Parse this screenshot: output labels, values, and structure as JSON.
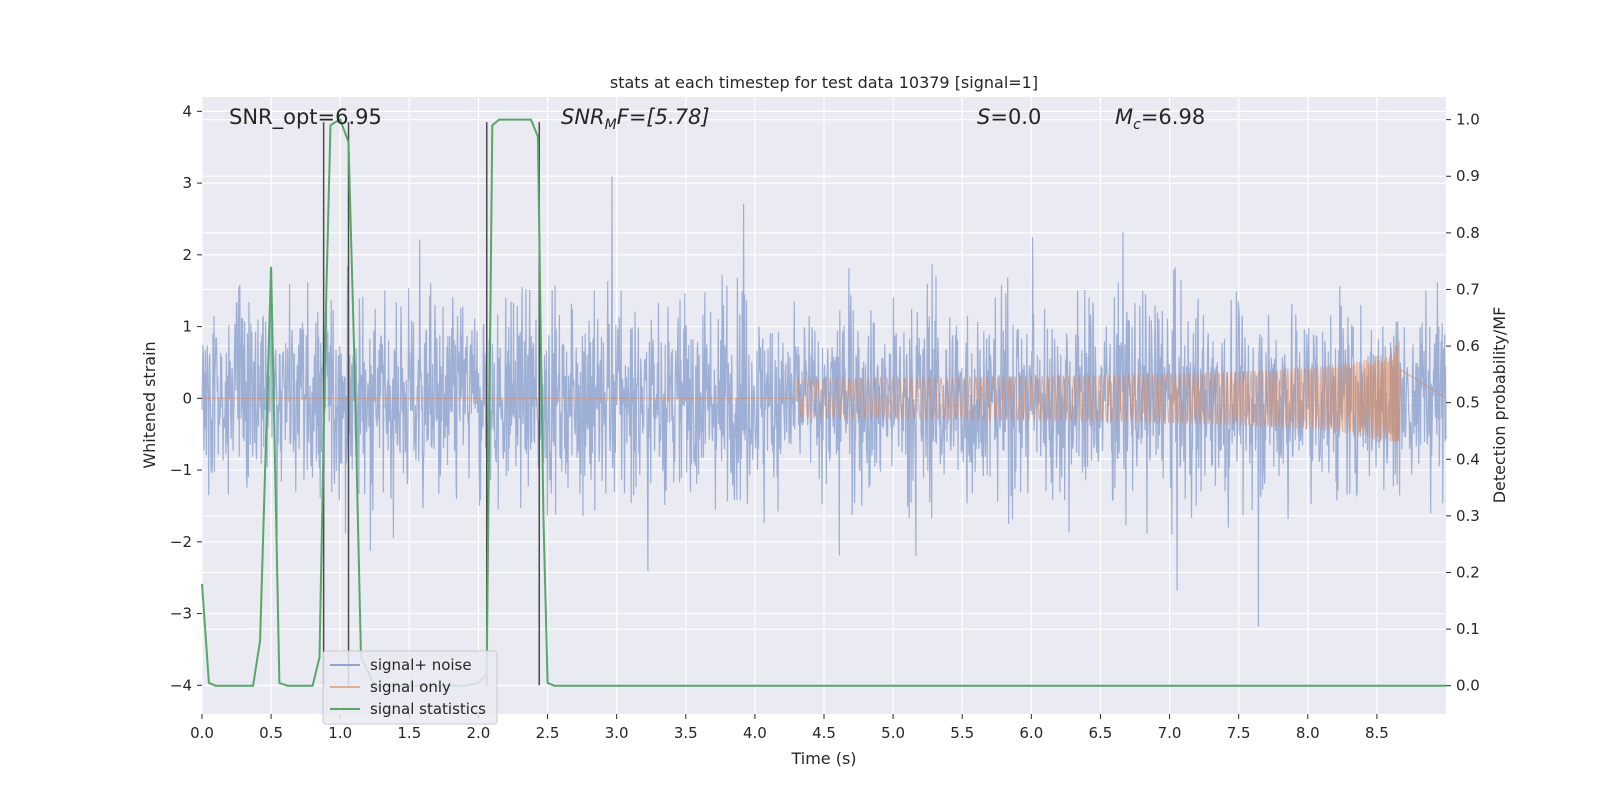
{
  "chart_data": {
    "type": "line",
    "title": "stats at each timestep for test data 10379 [signal=1]",
    "xlabel": "Time (s)",
    "ylabel": "Whitened strain",
    "ylabel_right": "Detection probability/MF",
    "xlim": [
      0,
      9.0
    ],
    "ylim": [
      -4.4,
      4.2
    ],
    "ylim_right": [
      -0.05,
      1.04
    ],
    "x_ticks": [
      "0.0",
      "0.5",
      "1.0",
      "1.5",
      "2.0",
      "2.5",
      "3.0",
      "3.5",
      "4.0",
      "4.5",
      "5.0",
      "5.5",
      "6.0",
      "6.5",
      "7.0",
      "7.5",
      "8.0",
      "8.5"
    ],
    "y_ticks": [
      "4",
      "3",
      "2",
      "1",
      "0",
      "−1",
      "−2",
      "−3",
      "−4"
    ],
    "y_ticks_right": [
      "1.0",
      "0.9",
      "0.8",
      "0.7",
      "0.6",
      "0.5",
      "0.4",
      "0.3",
      "0.2",
      "0.1",
      "0.0"
    ],
    "grid": true,
    "legend_position": "lower-left",
    "annotations": {
      "snr_opt": "SNR_opt=6.95",
      "snr_mf_main": "SNR",
      "snr_mf_sub": "M",
      "snr_mf_rest": "F=[5.78]",
      "s_main": "S",
      "s_rest": "=0.0",
      "mc_main": "M",
      "mc_sub": "c",
      "mc_rest": "=6.98"
    },
    "series": [
      {
        "name": "signal+ noise",
        "color": "#8fa4cf",
        "description_values": "noise-like whitened strain, typical amplitude ±1.5, peaks to ±3.8",
        "envelope": {
          "typical": 1.5,
          "peak_max": 3.85,
          "peak_min": -3.7
        }
      },
      {
        "name": "signal only",
        "color": "#dd8452",
        "chirp": {
          "start": 4.3,
          "end": 8.67,
          "peak_amplitude": 0.95,
          "min_amplitude": -0.6
        }
      },
      {
        "name": "signal statistics",
        "color": "#55a868",
        "axis": "right",
        "x": [
          0.0,
          0.05,
          0.1,
          0.2,
          0.3,
          0.37,
          0.42,
          0.5,
          0.56,
          0.62,
          0.7,
          0.8,
          0.85,
          0.9,
          0.93,
          0.96,
          1.0,
          1.03,
          1.06,
          1.1,
          1.15,
          1.25,
          1.5,
          1.75,
          1.9,
          2.0,
          2.06,
          2.1,
          2.15,
          2.2,
          2.3,
          2.38,
          2.43,
          2.47,
          2.5,
          2.55,
          3.0,
          4.0,
          5.0,
          6.0,
          7.0,
          8.0,
          8.5,
          9.0
        ],
        "values": [
          0.18,
          0.005,
          0.0,
          0.0,
          0.0,
          0.0,
          0.08,
          0.74,
          0.005,
          0.0,
          0.0,
          0.0,
          0.05,
          0.7,
          0.99,
          0.995,
          1.0,
          0.98,
          0.96,
          0.6,
          0.05,
          0.0,
          0.0,
          0.0,
          0.0,
          0.005,
          0.02,
          0.99,
          1.0,
          1.0,
          1.0,
          1.0,
          0.97,
          0.3,
          0.005,
          0.0,
          0.0,
          0.0,
          0.0,
          0.0,
          0.0,
          0.0,
          0.0,
          0.0
        ]
      }
    ],
    "vertical_markers": [
      0.88,
      1.06,
      2.06,
      2.44
    ],
    "colors": {
      "plot_bg": "#eaeaf2",
      "grid": "#ffffff",
      "marker_line": "#4a4a4a"
    }
  }
}
